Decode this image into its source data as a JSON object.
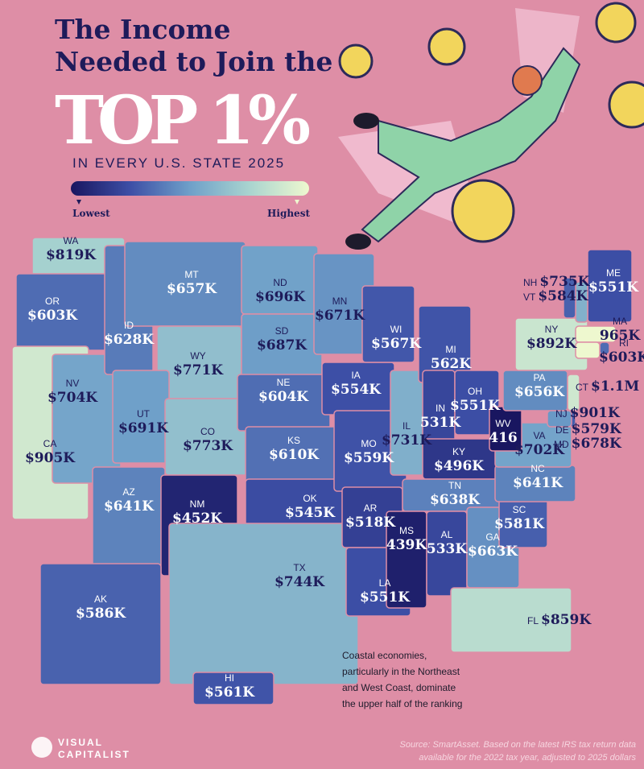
{
  "header": {
    "title_line1": "The Income",
    "title_line2": "Needed to Join the",
    "title_big": "TOP 1%",
    "subtitle": "IN EVERY U.S. STATE 2025"
  },
  "legend": {
    "low": "Lowest",
    "high": "Highest",
    "colors": [
      "#191660",
      "#3d4fa6",
      "#6fa0c9",
      "#a9d4cf",
      "#eef8cf"
    ]
  },
  "states": [
    {
      "abbr": "WA",
      "value": 819,
      "label": "$819K"
    },
    {
      "abbr": "OR",
      "value": 603,
      "label": "$603K"
    },
    {
      "abbr": "CA",
      "value": 905,
      "label": "$905K"
    },
    {
      "abbr": "NV",
      "value": 704,
      "label": "$704K"
    },
    {
      "abbr": "ID",
      "value": 628,
      "label": "$628K"
    },
    {
      "abbr": "MT",
      "value": 657,
      "label": "$657K"
    },
    {
      "abbr": "WY",
      "value": 771,
      "label": "$771K"
    },
    {
      "abbr": "UT",
      "value": 691,
      "label": "$691K"
    },
    {
      "abbr": "CO",
      "value": 773,
      "label": "$773K"
    },
    {
      "abbr": "AZ",
      "value": 641,
      "label": "$641K"
    },
    {
      "abbr": "NM",
      "value": 452,
      "label": "$452K"
    },
    {
      "abbr": "ND",
      "value": 696,
      "label": "$696K"
    },
    {
      "abbr": "SD",
      "value": 687,
      "label": "$687K"
    },
    {
      "abbr": "NE",
      "value": 604,
      "label": "$604K"
    },
    {
      "abbr": "KS",
      "value": 610,
      "label": "$610K"
    },
    {
      "abbr": "OK",
      "value": 545,
      "label": "$545K"
    },
    {
      "abbr": "TX",
      "value": 744,
      "label": "$744K"
    },
    {
      "abbr": "MN",
      "value": 671,
      "label": "$671K"
    },
    {
      "abbr": "IA",
      "value": 554,
      "label": "$554K"
    },
    {
      "abbr": "MO",
      "value": 559,
      "label": "$559K"
    },
    {
      "abbr": "AR",
      "value": 518,
      "label": "$518K"
    },
    {
      "abbr": "LA",
      "value": 551,
      "label": "$551K"
    },
    {
      "abbr": "WI",
      "value": 567,
      "label": "$567K"
    },
    {
      "abbr": "IL",
      "value": 731,
      "label": "$731K"
    },
    {
      "abbr": "MI",
      "value": 562,
      "label": "562K"
    },
    {
      "abbr": "IN",
      "value": 531,
      "label": "531K"
    },
    {
      "abbr": "OH",
      "value": 551,
      "label": "$551K"
    },
    {
      "abbr": "KY",
      "value": 496,
      "label": "$496K"
    },
    {
      "abbr": "TN",
      "value": 638,
      "label": "$638K"
    },
    {
      "abbr": "MS",
      "value": 439,
      "label": "439K"
    },
    {
      "abbr": "AL",
      "value": 533,
      "label": "533K"
    },
    {
      "abbr": "GA",
      "value": 663,
      "label": "$663K"
    },
    {
      "abbr": "FL",
      "value": 859,
      "label": "$859K"
    },
    {
      "abbr": "SC",
      "value": 581,
      "label": "$581K"
    },
    {
      "abbr": "NC",
      "value": 641,
      "label": "$641K"
    },
    {
      "abbr": "VA",
      "value": 702,
      "label": "$702K"
    },
    {
      "abbr": "WV",
      "value": 416,
      "label": "416"
    },
    {
      "abbr": "PA",
      "value": 656,
      "label": "$656K"
    },
    {
      "abbr": "NY",
      "value": 892,
      "label": "$892K"
    },
    {
      "abbr": "AK",
      "value": 586,
      "label": "$586K"
    },
    {
      "abbr": "HI",
      "value": 561,
      "label": "$561K"
    },
    {
      "abbr": "ME",
      "value": 551,
      "label": "$551K"
    },
    {
      "abbr": "NH",
      "value": 735,
      "label": "$735K"
    },
    {
      "abbr": "VT",
      "value": 584,
      "label": "$584K"
    },
    {
      "abbr": "MA",
      "value": 965,
      "label": "965K"
    },
    {
      "abbr": "RI",
      "value": 603,
      "label": "$603K"
    },
    {
      "abbr": "CT",
      "value": 1100,
      "label": "$1.1M"
    },
    {
      "abbr": "NJ",
      "value": 901,
      "label": "$901K"
    },
    {
      "abbr": "DE",
      "value": 579,
      "label": "$579K"
    },
    {
      "abbr": "MD",
      "value": 678,
      "label": "$678K"
    }
  ],
  "annotation": [
    "Coastal economies,",
    "particularly in the Northeast",
    "and West Coast, dominate",
    "the upper half of the ranking"
  ],
  "source": [
    "Source: SmartAsset. Based on the latest IRS tax return data",
    "available for the 2022 tax year, adjusted to 2025 dollars"
  ],
  "logo": [
    "VISUAL",
    "CAPITALIST"
  ]
}
